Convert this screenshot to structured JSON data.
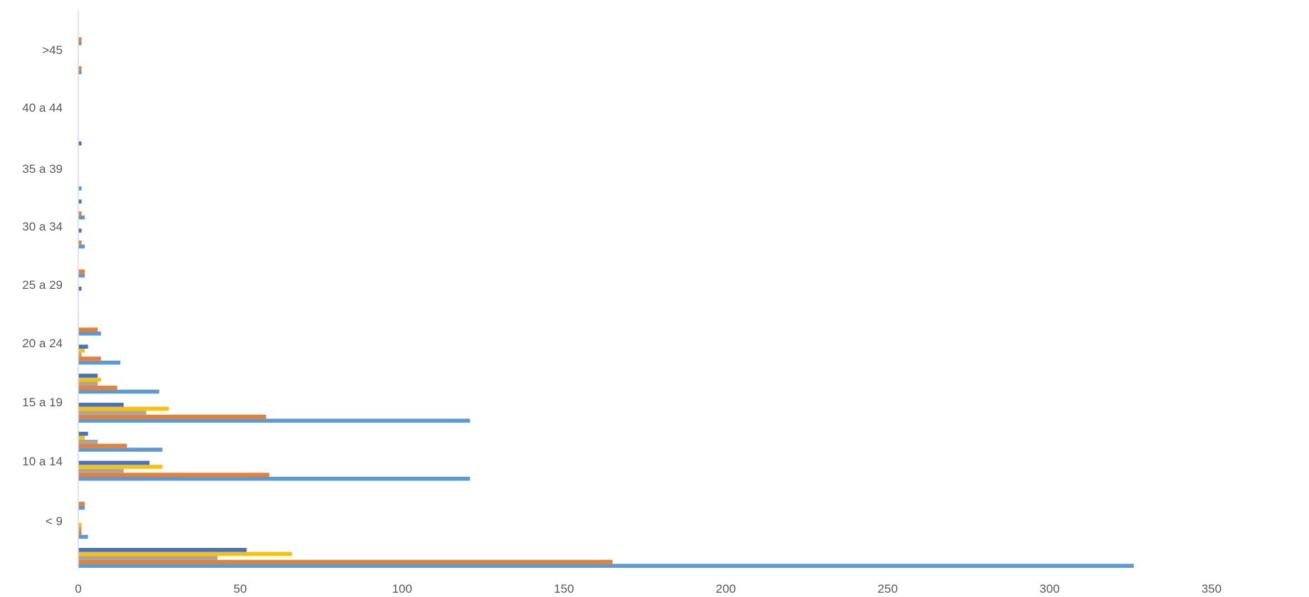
{
  "chart_data": {
    "type": "bar",
    "orientation": "horizontal",
    "title": "",
    "xlabel": "",
    "ylabel": "",
    "xlim": [
      0,
      350
    ],
    "x_ticks": [
      0,
      50,
      100,
      150,
      200,
      250,
      300,
      350
    ],
    "grid": false,
    "legend": "none",
    "categories": [
      "< 9",
      "10 a 14",
      "15 a 19",
      "20 a 24",
      "25 a 29",
      "30 a 34",
      "35 a 39",
      "40 a 44",
      ">45"
    ],
    "groups": [
      {
        "category": "< 9",
        "bars": [
          [
            326,
            "#5B9BD5"
          ],
          [
            165,
            "#ED7D31"
          ],
          [
            43,
            "#A5A5A5"
          ],
          [
            66,
            "#FFC000"
          ],
          [
            52,
            "#4472C4"
          ]
        ]
      },
      {
        "category": "< 9",
        "bars": [
          [
            3,
            "#5B9BD5"
          ],
          [
            1,
            "#ED7D31"
          ],
          [
            1,
            "#A5A5A5"
          ],
          [
            1,
            "#FFC000"
          ],
          [
            0,
            "#4472C4"
          ]
        ]
      },
      {
        "category": "< 9",
        "bars": [
          [
            2,
            "#5B9BD5"
          ],
          [
            2,
            "#ED7D31"
          ],
          [
            0,
            "#A5A5A5"
          ],
          [
            0,
            "#FFC000"
          ],
          [
            0,
            "#4472C4"
          ]
        ]
      },
      {
        "category": "10 a 14",
        "bars": [
          [
            121,
            "#5B9BD5"
          ],
          [
            59,
            "#ED7D31"
          ],
          [
            14,
            "#A5A5A5"
          ],
          [
            26,
            "#FFC000"
          ],
          [
            22,
            "#4472C4"
          ]
        ]
      },
      {
        "category": "10 a 14",
        "bars": [
          [
            26,
            "#5B9BD5"
          ],
          [
            15,
            "#ED7D31"
          ],
          [
            6,
            "#A5A5A5"
          ],
          [
            2,
            "#FFC000"
          ],
          [
            3,
            "#4472C4"
          ]
        ]
      },
      {
        "category": "15 a 19",
        "bars": [
          [
            121,
            "#5B9BD5"
          ],
          [
            58,
            "#ED7D31"
          ],
          [
            21,
            "#A5A5A5"
          ],
          [
            28,
            "#FFC000"
          ],
          [
            14,
            "#4472C4"
          ]
        ]
      },
      {
        "category": "15 a 19",
        "bars": [
          [
            25,
            "#5B9BD5"
          ],
          [
            12,
            "#ED7D31"
          ],
          [
            6,
            "#A5A5A5"
          ],
          [
            7,
            "#FFC000"
          ],
          [
            6,
            "#4472C4"
          ]
        ]
      },
      {
        "category": "20 a 24",
        "bars": [
          [
            13,
            "#5B9BD5"
          ],
          [
            7,
            "#ED7D31"
          ],
          [
            1,
            "#A5A5A5"
          ],
          [
            2,
            "#FFC000"
          ],
          [
            3,
            "#4472C4"
          ]
        ]
      },
      {
        "category": "20 a 24",
        "bars": [
          [
            7,
            "#5B9BD5"
          ],
          [
            6,
            "#ED7D31"
          ],
          [
            0,
            "#A5A5A5"
          ],
          [
            0,
            "#FFC000"
          ],
          [
            0,
            "#4472C4"
          ]
        ]
      },
      {
        "category": "25 a 29",
        "bars": [
          [
            0,
            "#5B9BD5"
          ],
          [
            0,
            "#ED7D31"
          ],
          [
            0,
            "#A5A5A5"
          ],
          [
            0,
            "#FFC000"
          ],
          [
            1,
            "#4472C4"
          ]
        ]
      },
      {
        "category": "25 a 29",
        "bars": [
          [
            2,
            "#5B9BD5"
          ],
          [
            2,
            "#ED7D31"
          ],
          [
            0,
            "#A5A5A5"
          ],
          [
            0,
            "#FFC000"
          ],
          [
            0,
            "#4472C4"
          ]
        ]
      },
      {
        "category": "30 a 34",
        "bars": [
          [
            2,
            "#5B9BD5"
          ],
          [
            1,
            "#ED7D31"
          ],
          [
            0,
            "#A5A5A5"
          ],
          [
            0,
            "#FFC000"
          ],
          [
            1,
            "#4472C4"
          ]
        ]
      },
      {
        "category": "30 a 34",
        "bars": [
          [
            2,
            "#5B9BD5"
          ],
          [
            1,
            "#ED7D31"
          ],
          [
            0,
            "#A5A5A5"
          ],
          [
            0,
            "#FFC000"
          ],
          [
            1,
            "#4472C4"
          ]
        ]
      },
      {
        "category": "35 a 39",
        "bars": [
          [
            1,
            "#5B9BD5"
          ],
          [
            0,
            "#ED7D31"
          ],
          [
            0,
            "#A5A5A5"
          ],
          [
            0,
            "#FFC000"
          ],
          [
            0,
            "#4472C4"
          ]
        ]
      },
      {
        "category": "35 a 39",
        "bars": [
          [
            0,
            "#5B9BD5"
          ],
          [
            0,
            "#ED7D31"
          ],
          [
            0,
            "#A5A5A5"
          ],
          [
            0,
            "#FFC000"
          ],
          [
            1,
            "#4472C4"
          ]
        ]
      },
      {
        "category": "40 a 44",
        "bars": [
          [
            0,
            "#5B9BD5"
          ],
          [
            0,
            "#ED7D31"
          ],
          [
            0,
            "#A5A5A5"
          ],
          [
            0,
            "#FFC000"
          ],
          [
            0,
            "#4472C4"
          ]
        ]
      },
      {
        "category": "40 a 44",
        "bars": [
          [
            0,
            "#5B9BD5"
          ],
          [
            0,
            "#ED7D31"
          ],
          [
            0,
            "#A5A5A5"
          ],
          [
            0,
            "#FFC000"
          ],
          [
            0,
            "#4472C4"
          ]
        ]
      },
      {
        "category": ">45",
        "bars": [
          [
            1,
            "#5B9BD5"
          ],
          [
            1,
            "#ED7D31"
          ],
          [
            0,
            "#A5A5A5"
          ],
          [
            0,
            "#FFC000"
          ],
          [
            0,
            "#4472C4"
          ]
        ]
      },
      {
        "category": ">45",
        "bars": [
          [
            1,
            "#5B9BD5"
          ],
          [
            1,
            "#ED7D31"
          ],
          [
            0,
            "#A5A5A5"
          ],
          [
            0,
            "#FFC000"
          ],
          [
            0,
            "#4472C4"
          ]
        ]
      }
    ]
  },
  "colors": {
    "axis_line": "#D9D9D9",
    "tick_text": "#595959",
    "series_palette": [
      "#5B9BD5",
      "#ED7D31",
      "#A5A5A5",
      "#FFC000",
      "#4472C4"
    ]
  }
}
